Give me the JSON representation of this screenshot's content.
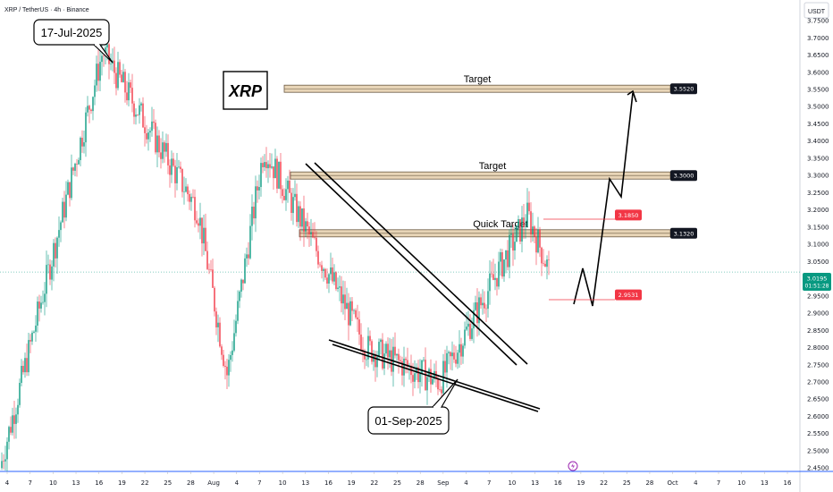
{
  "header": {
    "title": "XRP / TetherUS · 4h · Binance"
  },
  "price_axis": {
    "unit_label": "USDT"
  },
  "footer": {
    "bolt_icon": "lightning-icon"
  },
  "chart_data": {
    "type": "candlestick",
    "symbol": "XRP",
    "ylim": [
      2.44,
      3.81
    ],
    "y_ticks": [
      "3.7500",
      "3.7000",
      "3.6500",
      "3.6000",
      "3.5500",
      "3.5000",
      "3.4500",
      "3.4000",
      "3.3500",
      "3.3000",
      "3.2500",
      "3.2000",
      "3.1500",
      "3.1000",
      "3.0500",
      "2.9500",
      "2.9000",
      "2.8500",
      "2.8000",
      "2.7500",
      "2.7000",
      "2.6500",
      "2.6000",
      "2.5500",
      "2.5000",
      "2.4500"
    ],
    "x_ticks": [
      "4",
      "7",
      "10",
      "13",
      "16",
      "19",
      "22",
      "25",
      "28",
      "Aug",
      "4",
      "7",
      "10",
      "13",
      "16",
      "19",
      "22",
      "25",
      "28",
      "Sep",
      "4",
      "7",
      "10",
      "13",
      "16",
      "19",
      "22",
      "25",
      "28",
      "Oct",
      "4",
      "7",
      "10",
      "13",
      "16"
    ],
    "current_price": {
      "value": 3.0195,
      "label": "3.0195",
      "countdown": "01:51:28"
    },
    "price_labels": [
      {
        "label": "3.5520",
        "value": 3.552,
        "color": "#131722"
      },
      {
        "label": "3.3000",
        "value": 3.3,
        "color": "#131722"
      },
      {
        "label": "3.1320",
        "value": 3.132,
        "color": "#131722"
      },
      {
        "label": "3.1850",
        "value": 3.185,
        "color": "#f23645"
      },
      {
        "label": "2.9531",
        "value": 2.9531,
        "color": "#f23645"
      }
    ],
    "zones": [
      {
        "label": "Target",
        "value": 3.552
      },
      {
        "label": "Target",
        "value": 3.3
      },
      {
        "label": "Quick Target",
        "value": 3.132
      }
    ],
    "annotations": {
      "logo": "XRP",
      "high_callout": "17-Jul-2025",
      "low_callout": "01-Sep-2025"
    },
    "key_points": [
      {
        "date": "2025-07-03",
        "price": 2.45
      },
      {
        "date": "2025-07-17",
        "price": 3.66
      },
      {
        "date": "2025-07-30",
        "price": 3.2
      },
      {
        "date": "2025-08-03",
        "price": 2.72
      },
      {
        "date": "2025-08-08",
        "price": 3.38
      },
      {
        "date": "2025-08-22",
        "price": 2.8
      },
      {
        "date": "2025-09-01",
        "price": 2.7
      },
      {
        "date": "2025-09-13",
        "price": 3.185
      },
      {
        "date": "2025-09-16",
        "price": 3.0195
      }
    ],
    "colors": {
      "up": "#089981",
      "down": "#f23645",
      "zone_fill": "#e8d5b7",
      "zone_border": "#6b5a44"
    },
    "grid": false
  }
}
